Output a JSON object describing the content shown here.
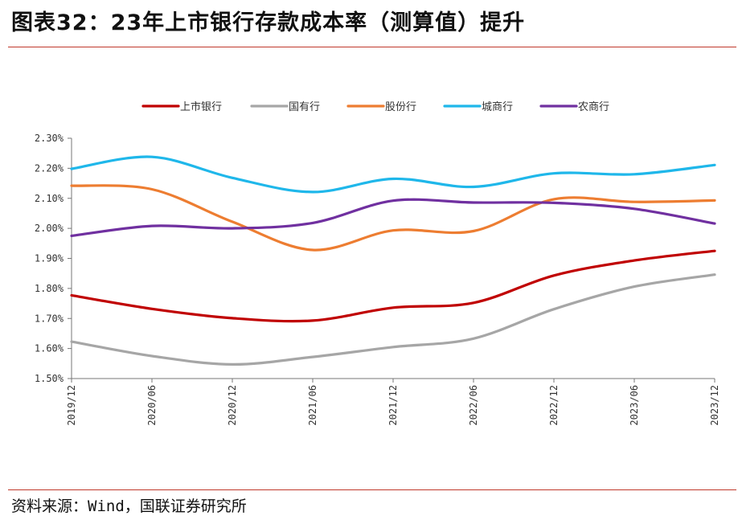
{
  "header": {
    "title": "图表32：23年上市银行存款成本率（测算值）提升"
  },
  "footer": {
    "source": "资料来源：Wind，国联证券研究所"
  },
  "chart_data": {
    "type": "line",
    "title": "图表32：23年上市银行存款成本率（测算值）提升",
    "xlabel": "",
    "ylabel": "",
    "x": [
      "2019/12",
      "2020/06",
      "2020/12",
      "2021/06",
      "2021/12",
      "2022/06",
      "2022/12",
      "2023/06",
      "2023/12"
    ],
    "y_ticks": [
      "1.50%",
      "1.60%",
      "1.70%",
      "1.80%",
      "1.90%",
      "2.00%",
      "2.10%",
      "2.20%",
      "2.30%"
    ],
    "ylim": [
      1.5,
      2.3
    ],
    "y_unit": "%",
    "grid": false,
    "legend_position": "top",
    "series": [
      {
        "name": "上市银行",
        "color": "#c00000",
        "values": [
          1.777,
          1.732,
          1.701,
          1.693,
          1.736,
          1.752,
          1.843,
          1.893,
          1.925
        ]
      },
      {
        "name": "国有行",
        "color": "#a6a6a6",
        "values": [
          1.623,
          1.575,
          1.547,
          1.572,
          1.605,
          1.633,
          1.731,
          1.806,
          1.846
        ]
      },
      {
        "name": "股份行",
        "color": "#ed7d31",
        "values": [
          2.142,
          2.13,
          2.022,
          1.928,
          1.993,
          1.991,
          2.097,
          2.088,
          2.093
        ]
      },
      {
        "name": "城商行",
        "color": "#1fb7ea",
        "values": [
          2.198,
          2.238,
          2.168,
          2.121,
          2.165,
          2.138,
          2.183,
          2.18,
          2.211
        ]
      },
      {
        "name": "农商行",
        "color": "#7030a0",
        "values": [
          1.975,
          2.008,
          2.0,
          2.018,
          2.092,
          2.086,
          2.085,
          2.065,
          2.016
        ]
      }
    ]
  }
}
